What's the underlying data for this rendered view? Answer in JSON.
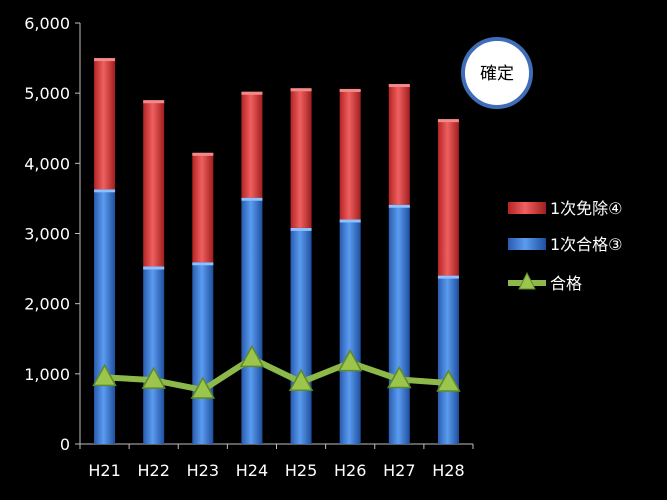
{
  "chart_data": {
    "type": "bar",
    "stacked": true,
    "categories": [
      "H21",
      "H22",
      "H23",
      "H24",
      "H25",
      "H26",
      "H27",
      "H28"
    ],
    "ylim": [
      0,
      6000
    ],
    "yticks": [
      "0",
      "1,000",
      "2,000",
      "3,000",
      "4,000",
      "5,000",
      "6,000"
    ],
    "series": [
      {
        "name": "1次合格③",
        "kind": "bar",
        "color": "#3a7bd5",
        "values": [
          3630,
          2530,
          2590,
          3510,
          3080,
          3200,
          3410,
          2400
        ]
      },
      {
        "name": "1次免除④",
        "kind": "bar",
        "color": "#d93a3a",
        "values": [
          1870,
          2370,
          1560,
          1510,
          1990,
          1860,
          1720,
          2230
        ]
      },
      {
        "name": "合格",
        "kind": "line",
        "color": "#8db94a",
        "values": [
          950,
          910,
          770,
          1220,
          880,
          1160,
          920,
          870
        ]
      }
    ],
    "annotation": "確定",
    "grid": false,
    "legend_position": "right"
  }
}
